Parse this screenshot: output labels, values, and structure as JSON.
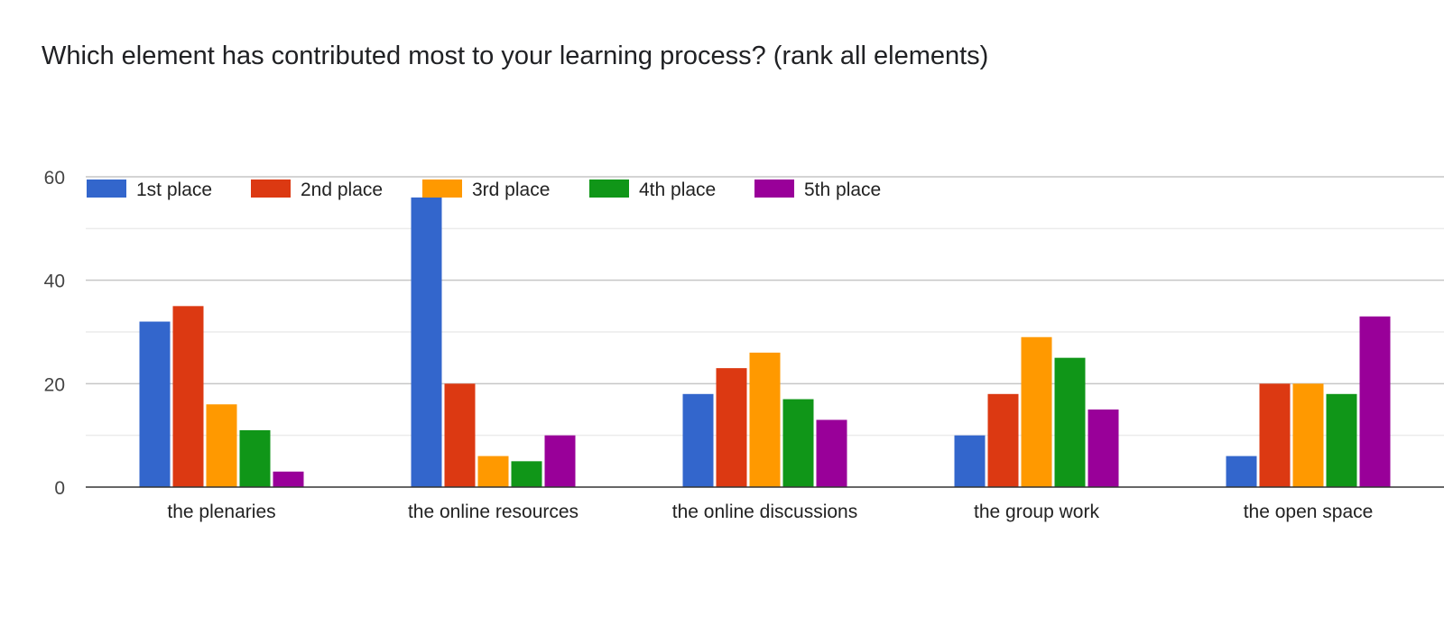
{
  "chart_data": {
    "type": "bar",
    "title": "Which element has contributed most to your learning process? (rank all elements)",
    "categories": [
      "the plenaries",
      "the online resources",
      "the online discussions",
      "the group work",
      "the open space"
    ],
    "series": [
      {
        "name": "1st place",
        "color": "#3366cc",
        "values": [
          32,
          56,
          18,
          10,
          6
        ]
      },
      {
        "name": "2nd place",
        "color": "#dc3912",
        "values": [
          35,
          20,
          23,
          18,
          20
        ]
      },
      {
        "name": "3rd place",
        "color": "#ff9900",
        "values": [
          16,
          6,
          26,
          29,
          20
        ]
      },
      {
        "name": "4th place",
        "color": "#109618",
        "values": [
          11,
          5,
          17,
          25,
          18
        ]
      },
      {
        "name": "5th place",
        "color": "#990099",
        "values": [
          3,
          10,
          13,
          15,
          33
        ]
      }
    ],
    "yticks": [
      0,
      20,
      40,
      60
    ],
    "ylim": [
      0,
      60
    ],
    "legend_position": "top-left",
    "grid": true
  }
}
